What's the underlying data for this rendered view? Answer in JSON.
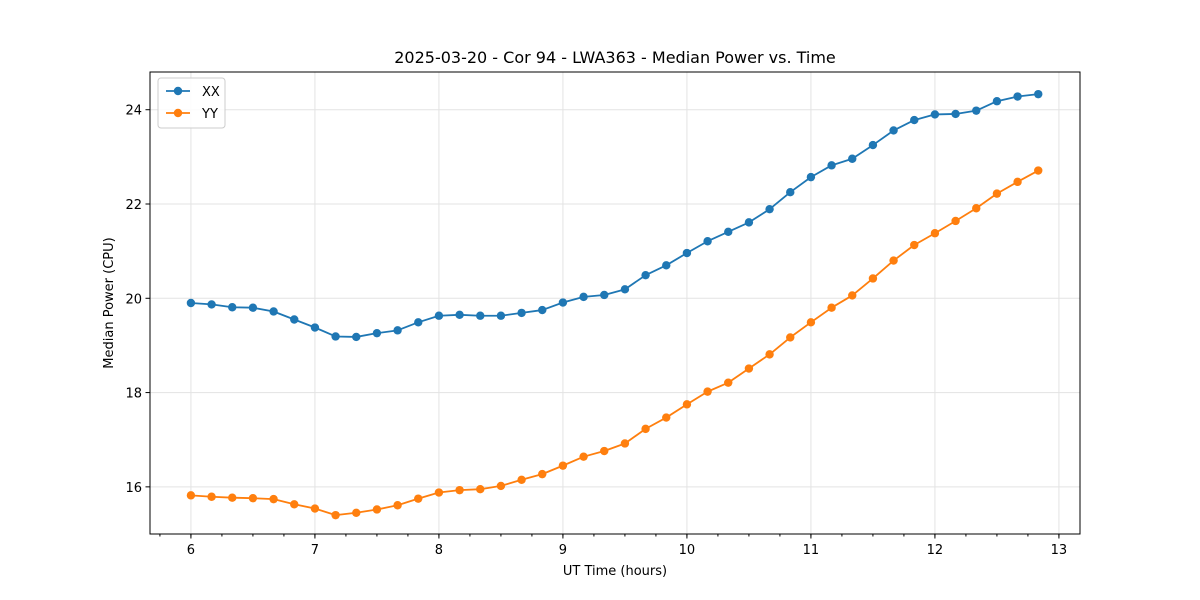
{
  "chart_data": {
    "type": "line",
    "title": "2025-03-20 - Cor 94 - LWA363 - Median Power vs. Time",
    "xlabel": "UT Time (hours)",
    "ylabel": "Median Power (CPU)",
    "xlim": [
      5.67,
      13.17
    ],
    "ylim": [
      15.0,
      24.8
    ],
    "xticks": [
      6,
      7,
      8,
      9,
      10,
      11,
      12,
      13
    ],
    "xticks_minor_step": 0.25,
    "yticks": [
      16,
      18,
      20,
      22,
      24
    ],
    "grid": true,
    "legend": "top-left",
    "x": [
      6.0,
      6.1667,
      6.3333,
      6.5,
      6.6667,
      6.8333,
      7.0,
      7.1667,
      7.3333,
      7.5,
      7.6667,
      7.8333,
      8.0,
      8.1667,
      8.3333,
      8.5,
      8.6667,
      8.8333,
      9.0,
      9.1667,
      9.3333,
      9.5,
      9.6667,
      9.8333,
      10.0,
      10.1667,
      10.3333,
      10.5,
      10.6667,
      10.8333,
      11.0,
      11.1667,
      11.3333,
      11.5,
      11.6667,
      11.8333,
      12.0,
      12.1667,
      12.3333,
      12.5,
      12.6667,
      12.8333
    ],
    "series": [
      {
        "name": "XX",
        "color": "#1f77b4",
        "values": [
          19.9,
          19.87,
          19.81,
          19.8,
          19.72,
          19.55,
          19.38,
          19.19,
          19.18,
          19.26,
          19.32,
          19.49,
          19.63,
          19.65,
          19.63,
          19.63,
          19.69,
          19.75,
          19.91,
          20.03,
          20.07,
          20.19,
          20.49,
          20.7,
          20.96,
          21.21,
          21.41,
          21.61,
          21.89,
          22.25,
          22.57,
          22.82,
          22.96,
          23.25,
          23.56,
          23.78,
          23.9,
          23.91,
          23.98,
          24.18,
          24.28,
          24.33
        ]
      },
      {
        "name": "YY",
        "color": "#ff7f0e",
        "values": [
          15.82,
          15.79,
          15.77,
          15.76,
          15.74,
          15.63,
          15.54,
          15.4,
          15.45,
          15.52,
          15.61,
          15.75,
          15.88,
          15.93,
          15.95,
          16.02,
          16.15,
          16.27,
          16.45,
          16.64,
          16.76,
          16.92,
          17.23,
          17.47,
          17.75,
          18.02,
          18.21,
          18.51,
          18.81,
          19.17,
          19.49,
          19.8,
          20.06,
          20.42,
          20.8,
          21.13,
          21.38,
          21.64,
          21.91,
          22.22,
          22.47,
          22.71
        ]
      }
    ]
  }
}
